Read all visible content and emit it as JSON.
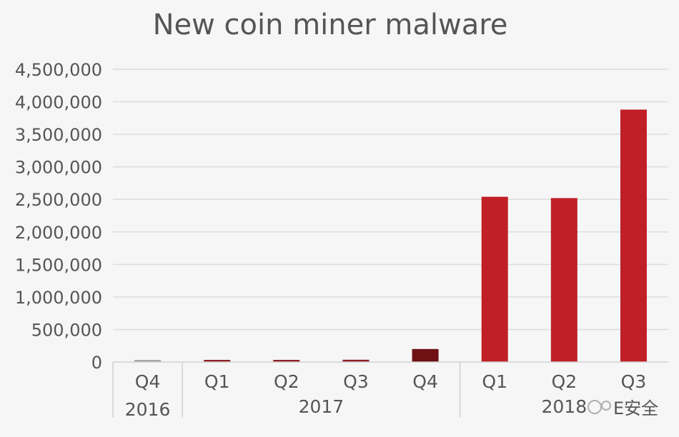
{
  "chart_data": {
    "type": "bar",
    "title": "New coin miner malware",
    "xlabel": "",
    "ylabel": "",
    "ylim": [
      0,
      4500000
    ],
    "y_ticks": [
      0,
      500000,
      1000000,
      1500000,
      2000000,
      2500000,
      3000000,
      3500000,
      4000000,
      4500000
    ],
    "y_tick_labels": [
      "0",
      "500,000",
      "1,000,000",
      "1,500,000",
      "2,000,000",
      "2,500,000",
      "3,000,000",
      "3,500,000",
      "4,000,000",
      "4,500,000"
    ],
    "grid": true,
    "legend": "none",
    "categories": [
      {
        "quarter": "Q4",
        "year": "2016"
      },
      {
        "quarter": "Q1",
        "year": "2017"
      },
      {
        "quarter": "Q2",
        "year": "2017"
      },
      {
        "quarter": "Q3",
        "year": "2017"
      },
      {
        "quarter": "Q4",
        "year": "2017"
      },
      {
        "quarter": "Q1",
        "year": "2018"
      },
      {
        "quarter": "Q2",
        "year": "2018"
      },
      {
        "quarter": "Q3",
        "year": "2018"
      }
    ],
    "year_groups": [
      {
        "label": "2016",
        "count": 1
      },
      {
        "label": "2017",
        "count": 4
      },
      {
        "label": "2018",
        "count": 3
      }
    ],
    "values": [
      15000,
      20000,
      25000,
      35000,
      200000,
      2540000,
      2520000,
      3880000
    ],
    "bar_colors": [
      "#a6a6a6",
      "#8e1d22",
      "#8e1d22",
      "#8e1d22",
      "#6e1014",
      "#c01f27",
      "#c01f27",
      "#c01f27"
    ]
  },
  "watermark": {
    "text": "E安全"
  }
}
